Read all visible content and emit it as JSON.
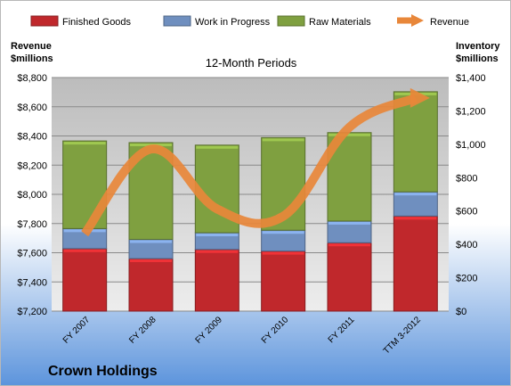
{
  "company": "Crown Holdings",
  "colors": {
    "finished_goods": "#C0282C",
    "work_in_progress": "#6F8FBF",
    "raw_materials": "#7FA040",
    "revenue": "#E8873A"
  },
  "chart_data": {
    "type": "bar",
    "stacked": true,
    "title": "12-Month Periods",
    "categories": [
      "FY 2007",
      "FY 2008",
      "FY 2009",
      "FY 2010",
      "FY 2011",
      "TTM 3-2012"
    ],
    "left_axis": {
      "label_line1": "Revenue",
      "label_line2": "$millions",
      "range": [
        7200,
        8800
      ],
      "ticks": [
        "$7,200",
        "$7,400",
        "$7,600",
        "$7,800",
        "$8,000",
        "$8,200",
        "$8,400",
        "$8,600",
        "$8,800"
      ]
    },
    "right_axis": {
      "label_line1": "Inventory",
      "label_line2": "$millions",
      "range": [
        0,
        1400
      ],
      "ticks": [
        "$0",
        "$200",
        "$400",
        "$600",
        "$800",
        "$1,000",
        "$1,200",
        "$1,400"
      ]
    },
    "grid": true,
    "legend_position": "top",
    "series": [
      {
        "name": "Finished Goods",
        "axis": "right",
        "values": [
          375,
          315,
          370,
          360,
          410,
          570
        ]
      },
      {
        "name": "Work in Progress",
        "axis": "right",
        "values": [
          120,
          115,
          100,
          125,
          130,
          145
        ]
      },
      {
        "name": "Raw Materials",
        "axis": "right",
        "values": [
          525,
          580,
          525,
          555,
          530,
          600
        ]
      },
      {
        "name": "Revenue",
        "axis": "left",
        "type": "line",
        "values": [
          7730,
          8310,
          7900,
          7850,
          8460,
          8660
        ]
      }
    ]
  }
}
